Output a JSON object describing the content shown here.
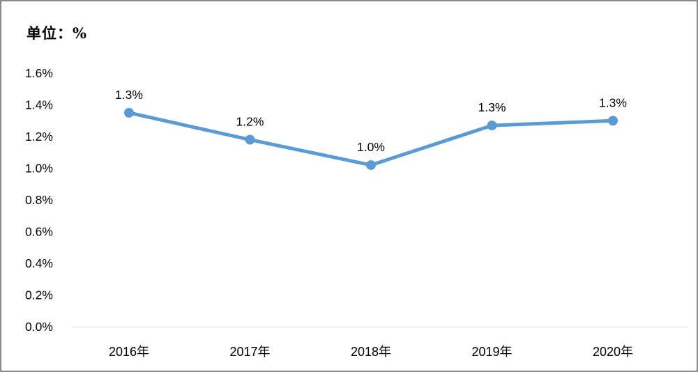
{
  "window": {
    "background": "#ffffff",
    "border_color": "#8a8a8a"
  },
  "chart": {
    "unit_label": "单位：%"
  },
  "chart_data": {
    "type": "line",
    "title": "单位：%",
    "categories": [
      "2016年",
      "2017年",
      "2018年",
      "2019年",
      "2020年"
    ],
    "series": [
      {
        "name": "",
        "values": [
          1.3,
          1.2,
          1.0,
          1.3,
          1.3
        ],
        "values_plot": [
          1.35,
          1.18,
          1.02,
          1.27,
          1.3
        ],
        "point_labels": [
          "1.3%",
          "1.2%",
          "1.0%",
          "1.3%",
          "1.3%"
        ],
        "color": "#5b9bd5",
        "marker": "circle"
      }
    ],
    "xlabel": "",
    "ylabel": "单位：%",
    "ylim": [
      0.0,
      1.6
    ],
    "yticks": [
      0.0,
      0.2,
      0.4,
      0.6,
      0.8,
      1.0,
      1.2,
      1.4,
      1.6
    ],
    "ytick_labels": [
      "0.0%",
      "0.2%",
      "0.4%",
      "0.6%",
      "0.8%",
      "1.0%",
      "1.2%",
      "1.4%",
      "1.6%"
    ],
    "grid": false,
    "legend": "none",
    "axis_line_color": "#efefef",
    "text_color": "#000000"
  }
}
